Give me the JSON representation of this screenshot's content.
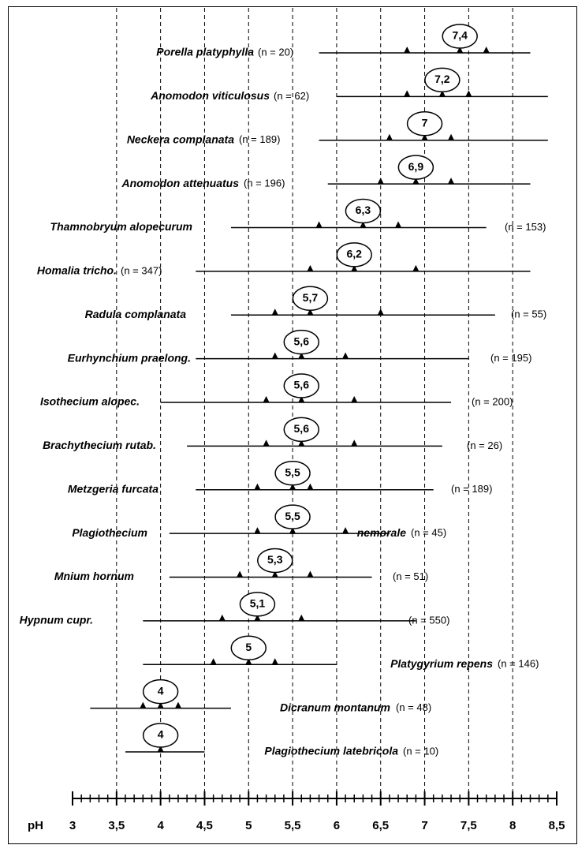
{
  "chart_data": {
    "type": "range",
    "x_label": "pH",
    "xlim": [
      3,
      8.5
    ],
    "xticks": [
      3,
      {
        "value": 3.5,
        "label": "3,5"
      },
      4,
      {
        "value": 4.5,
        "label": "4,5"
      },
      5,
      {
        "value": 5.5,
        "label": "5,5"
      },
      6,
      {
        "value": 6.5,
        "label": "6,5"
      },
      7,
      {
        "value": 7.5,
        "label": "7,5"
      },
      8,
      {
        "value": 8.5,
        "label": "8,5"
      }
    ],
    "grid": true,
    "rows": [
      {
        "name": [
          "Porella platyphylla"
        ],
        "n_label": "(n = 20)",
        "min": 5.8,
        "max": 8.2,
        "markers": [
          6.8,
          7.4,
          7.7
        ],
        "median_label": "7,4"
      },
      {
        "name": [
          "Anomodon viticulosus"
        ],
        "n_label": "(n = 62)",
        "min": 6.0,
        "max": 8.4,
        "markers": [
          6.8,
          7.2,
          7.5
        ],
        "median_label": "7,2"
      },
      {
        "name": [
          "Neckera complanata"
        ],
        "n_label": "(n = 189)",
        "min": 5.8,
        "max": 8.4,
        "markers": [
          6.6,
          7.0,
          7.3
        ],
        "median_label": "7"
      },
      {
        "name": [
          "Anomodon attenuatus"
        ],
        "n_label": "(n = 196)",
        "min": 5.9,
        "max": 8.2,
        "markers": [
          6.5,
          6.9,
          7.3
        ],
        "median_label": "6,9"
      },
      {
        "name": [
          "Thamnobryum alopecurum"
        ],
        "n_label": "(n = 153)",
        "min": 4.8,
        "max": 7.7,
        "markers": [
          5.8,
          6.3,
          6.7
        ],
        "median_label": "6,3"
      },
      {
        "name": [
          "Homalia tricho."
        ],
        "n_label": "(n = 347)",
        "min": 4.4,
        "max": 8.2,
        "markers": [
          5.7,
          6.2,
          6.9
        ],
        "median_label": "6,2"
      },
      {
        "name": [
          "Radula complanata"
        ],
        "n_label": "(n = 55)",
        "min": 4.8,
        "max": 7.8,
        "markers": [
          5.3,
          5.7,
          6.5
        ],
        "median_label": "5,7"
      },
      {
        "name": [
          "Eurhynchium praelong."
        ],
        "n_label": "(n = 195)",
        "min": 4.4,
        "max": 7.5,
        "markers": [
          5.3,
          5.6,
          6.1
        ],
        "median_label": "5,6"
      },
      {
        "name": [
          "Isothecium alopec."
        ],
        "n_label": "(n = 200)",
        "min": 4.0,
        "max": 7.3,
        "markers": [
          5.2,
          5.6,
          6.2
        ],
        "median_label": "5,6"
      },
      {
        "name": [
          "Brachythecium rutab."
        ],
        "n_label": "(n = 26)",
        "min": 4.3,
        "max": 7.2,
        "markers": [
          5.2,
          5.6,
          6.2
        ],
        "median_label": "5,6"
      },
      {
        "name": [
          "Metzgeria furcata"
        ],
        "n_label": "(n = 189)",
        "min": 4.4,
        "max": 7.1,
        "markers": [
          5.1,
          5.5,
          5.7
        ],
        "median_label": "5,5"
      },
      {
        "name": [
          "Plagiothecium",
          "nemorale"
        ],
        "n_label": "(n = 45)",
        "min": 4.1,
        "max": 6.6,
        "markers": [
          5.1,
          5.5,
          6.1
        ],
        "median_label": "5,5"
      },
      {
        "name": [
          "Mnium hornum"
        ],
        "n_label": "(n = 51)",
        "min": 4.1,
        "max": 6.4,
        "markers": [
          4.9,
          5.3,
          5.7
        ],
        "median_label": "5,3"
      },
      {
        "name": [
          "Hypnum cupr."
        ],
        "n_label": "(n = 550)",
        "min": 3.8,
        "max": 6.9,
        "markers": [
          4.7,
          5.1,
          5.6
        ],
        "median_label": "5,1"
      },
      {
        "name": [
          "Platygyrium repens"
        ],
        "n_label": "(n = 146)",
        "min": 3.8,
        "max": 6.0,
        "markers": [
          4.6,
          5.0,
          5.3
        ],
        "median_label": "5"
      },
      {
        "name": [
          "Dicranum montanum"
        ],
        "n_label": "(n = 48)",
        "min": 3.2,
        "max": 4.8,
        "markers": [
          3.8,
          4.0,
          4.2
        ],
        "median_label": "4"
      },
      {
        "name": [
          "Plagiothecium latebricola"
        ],
        "n_label": "(n = 10)",
        "min": 3.6,
        "max": 4.5,
        "markers": [
          4.0
        ],
        "median_label": "4"
      }
    ]
  }
}
